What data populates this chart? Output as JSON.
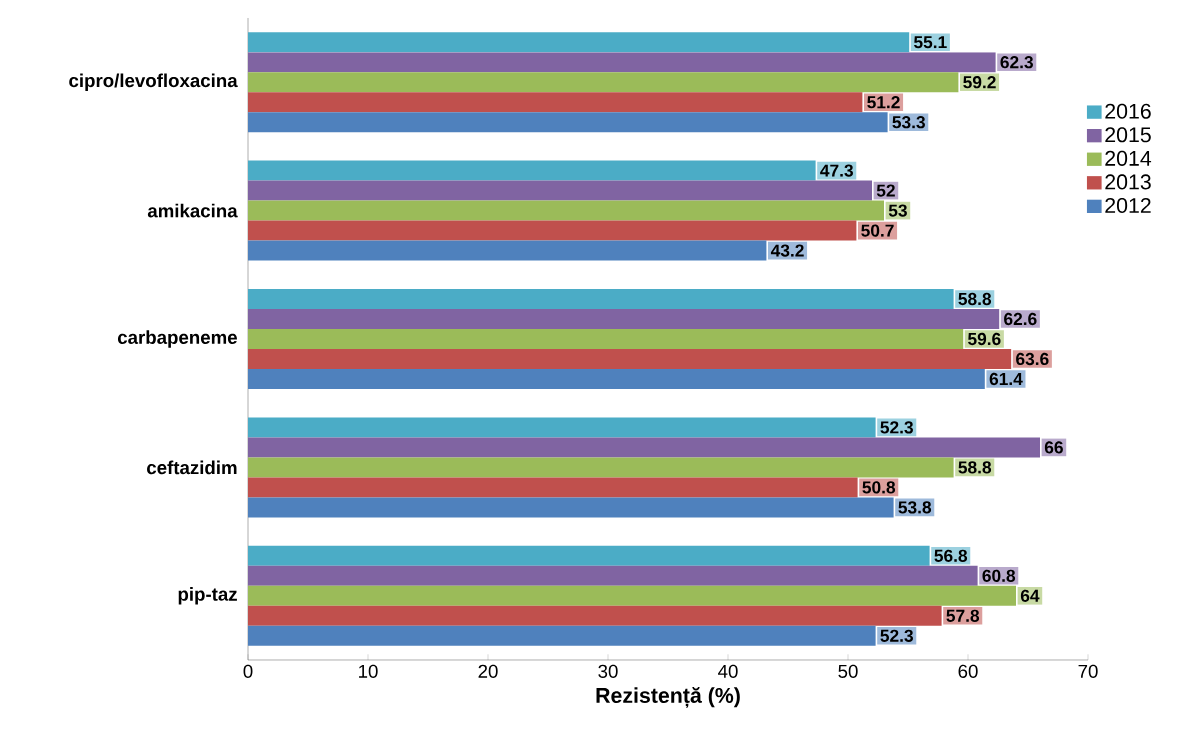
{
  "chart_data": {
    "type": "bar",
    "orientation": "horizontal",
    "categories": [
      "cipro/levofloxacina",
      "amikacina",
      "carbapeneme",
      "ceftazidim",
      "pip-taz"
    ],
    "series": [
      {
        "name": "2016",
        "color": "#4bacc6",
        "values": [
          55.1,
          47.3,
          58.8,
          52.3,
          56.8
        ]
      },
      {
        "name": "2015",
        "color": "#8064a2",
        "values": [
          62.3,
          52,
          62.6,
          66,
          60.8
        ]
      },
      {
        "name": "2014",
        "color": "#9bbb59",
        "values": [
          59.2,
          53,
          59.6,
          58.8,
          64
        ]
      },
      {
        "name": "2013",
        "color": "#c0504d",
        "values": [
          51.2,
          50.7,
          63.6,
          50.8,
          57.8
        ]
      },
      {
        "name": "2012",
        "color": "#4f81bd",
        "values": [
          53.3,
          43.2,
          61.4,
          53.8,
          52.3
        ]
      }
    ],
    "xlabel": "Rezistență (%)",
    "xlim": [
      0,
      70
    ],
    "xticks": [
      0,
      10,
      20,
      30,
      40,
      50,
      60,
      70
    ],
    "data_labels": true,
    "legend": "right",
    "grid": false
  }
}
